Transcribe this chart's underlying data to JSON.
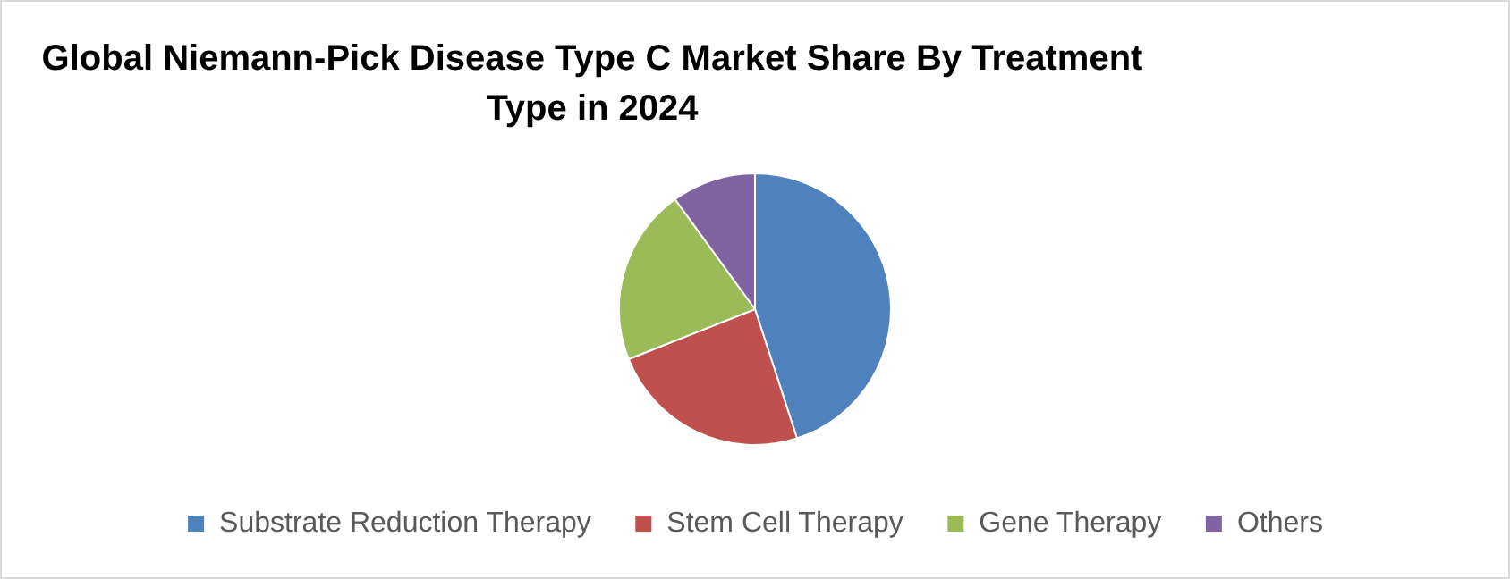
{
  "chart_data": {
    "type": "pie",
    "title": "Global Niemann-Pick Disease Type C Market Share By Treatment Type in 2024",
    "categories": [
      "Substrate Reduction Therapy",
      "Stem Cell Therapy",
      "Gene Therapy",
      "Others"
    ],
    "values": [
      45,
      24,
      21,
      10
    ],
    "colors": [
      "#4f81bd",
      "#c0504d",
      "#9bbb59",
      "#8064a2"
    ],
    "legend": "bottom"
  }
}
